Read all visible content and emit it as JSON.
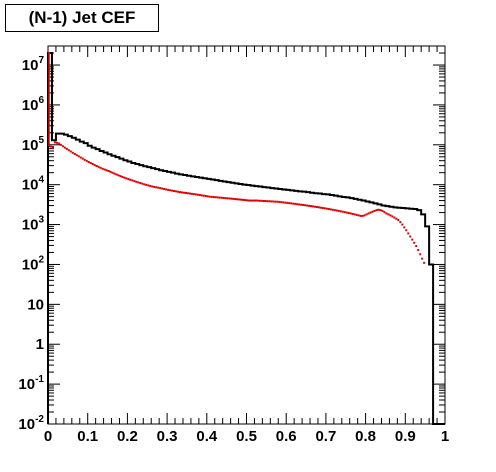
{
  "chart_data": {
    "type": "step-histogram",
    "title": "(N-1) Jet CEF",
    "xlabel": "",
    "ylabel": "",
    "xlim": [
      0,
      1
    ],
    "ylim": [
      0.01,
      30000000
    ],
    "yscale": "log",
    "grid": false,
    "legend": "none",
    "x_ticks": [
      {
        "value": 0,
        "label": "0"
      },
      {
        "value": 0.1,
        "label": "0.1"
      },
      {
        "value": 0.2,
        "label": "0.2"
      },
      {
        "value": 0.3,
        "label": "0.3"
      },
      {
        "value": 0.4,
        "label": "0.4"
      },
      {
        "value": 0.5,
        "label": "0.5"
      },
      {
        "value": 0.6,
        "label": "0.6"
      },
      {
        "value": 0.7,
        "label": "0.7"
      },
      {
        "value": 0.8,
        "label": "0.8"
      },
      {
        "value": 0.9,
        "label": "0.9"
      },
      {
        "value": 1,
        "label": "1"
      }
    ],
    "y_ticks": [
      {
        "value": 0.01,
        "base": "10",
        "exp": "-2"
      },
      {
        "value": 0.1,
        "base": "10",
        "exp": "-1"
      },
      {
        "value": 1,
        "base": "1",
        "exp": ""
      },
      {
        "value": 10,
        "base": "10",
        "exp": ""
      },
      {
        "value": 100,
        "base": "10",
        "exp": "2"
      },
      {
        "value": 1000,
        "base": "10",
        "exp": "3"
      },
      {
        "value": 10000,
        "base": "10",
        "exp": "4"
      },
      {
        "value": 100000,
        "base": "10",
        "exp": "5"
      },
      {
        "value": 1000000,
        "base": "10",
        "exp": "6"
      },
      {
        "value": 10000000,
        "base": "10",
        "exp": "7"
      }
    ],
    "series": [
      {
        "color": "#000000",
        "style": "step",
        "bin_width": 0.01,
        "values": [
          20000000,
          130000,
          190000,
          190000,
          180000,
          165000,
          150000,
          135000,
          120000,
          110000,
          95000,
          85000,
          78000,
          70000,
          64000,
          58000,
          53000,
          49000,
          45000,
          41000,
          38000,
          35000,
          33000,
          31000,
          29000,
          27500,
          26000,
          24500,
          23000,
          22000,
          21000,
          20000,
          19000,
          18200,
          17500,
          16800,
          16200,
          15600,
          15000,
          14500,
          14000,
          13500,
          13000,
          12500,
          12000,
          11600,
          11200,
          10800,
          10400,
          10000,
          9800,
          9500,
          9200,
          9000,
          8700,
          8500,
          8200,
          8000,
          7800,
          7600,
          7400,
          7200,
          7000,
          6800,
          6700,
          6500,
          6300,
          6100,
          6000,
          5800,
          5700,
          5500,
          5300,
          5100,
          4900,
          4800,
          4600,
          4400,
          4200,
          4000,
          3800,
          3600,
          3400,
          3200,
          3000,
          2900,
          2800,
          2700,
          2650,
          2600,
          2550,
          2500,
          2450,
          2300,
          1800,
          900,
          100,
          0.01,
          0.01,
          0.01
        ]
      },
      {
        "color": "#e00000",
        "style": "markers",
        "bin_width": 0.005,
        "values": [
          20000000,
          90000,
          85000,
          115000,
          112000,
          108000,
          100000,
          92000,
          85000,
          79000,
          73000,
          68000,
          63000,
          59000,
          55000,
          51500,
          48000,
          45000,
          42000,
          39500,
          37000,
          35000,
          33000,
          31000,
          29500,
          28000,
          26500,
          25000,
          24000,
          23000,
          22000,
          21000,
          20000,
          19000,
          18000,
          17200,
          16400,
          15700,
          15000,
          14400,
          13800,
          13300,
          12800,
          12300,
          11800,
          11400,
          11000,
          10600,
          10200,
          9900,
          9600,
          9300,
          9000,
          8800,
          8600,
          8400,
          8200,
          8000,
          7800,
          7600,
          7400,
          7250,
          7100,
          6950,
          6800,
          6650,
          6500,
          6400,
          6300,
          6200,
          6100,
          6000,
          5900,
          5800,
          5700,
          5600,
          5500,
          5400,
          5300,
          5200,
          5100,
          5000,
          4950,
          4900,
          4850,
          4800,
          4750,
          4700,
          4650,
          4600,
          4550,
          4500,
          4450,
          4400,
          4350,
          4300,
          4250,
          4200,
          4150,
          4100,
          4050,
          4000,
          4000,
          4000,
          4000,
          4000,
          3950,
          3950,
          3900,
          3900,
          3850,
          3850,
          3800,
          3800,
          3750,
          3750,
          3700,
          3650,
          3600,
          3550,
          3500,
          3450,
          3400,
          3350,
          3300,
          3250,
          3200,
          3150,
          3100,
          3050,
          3000,
          2950,
          2900,
          2850,
          2800,
          2750,
          2700,
          2650,
          2600,
          2550,
          2500,
          2450,
          2400,
          2350,
          2300,
          2250,
          2200,
          2150,
          2100,
          2050,
          2000,
          1950,
          1900,
          1850,
          1800,
          1750,
          1700,
          1650,
          1650,
          1700,
          1800,
          1900,
          2000,
          2100,
          2200,
          2300,
          2350,
          2300,
          2200,
          2050,
          1900,
          1800,
          1700,
          1600,
          1500,
          1400,
          1300,
          1150,
          1000,
          850,
          720,
          600,
          500,
          420,
          350,
          290,
          230,
          180,
          140,
          110
        ]
      }
    ]
  }
}
